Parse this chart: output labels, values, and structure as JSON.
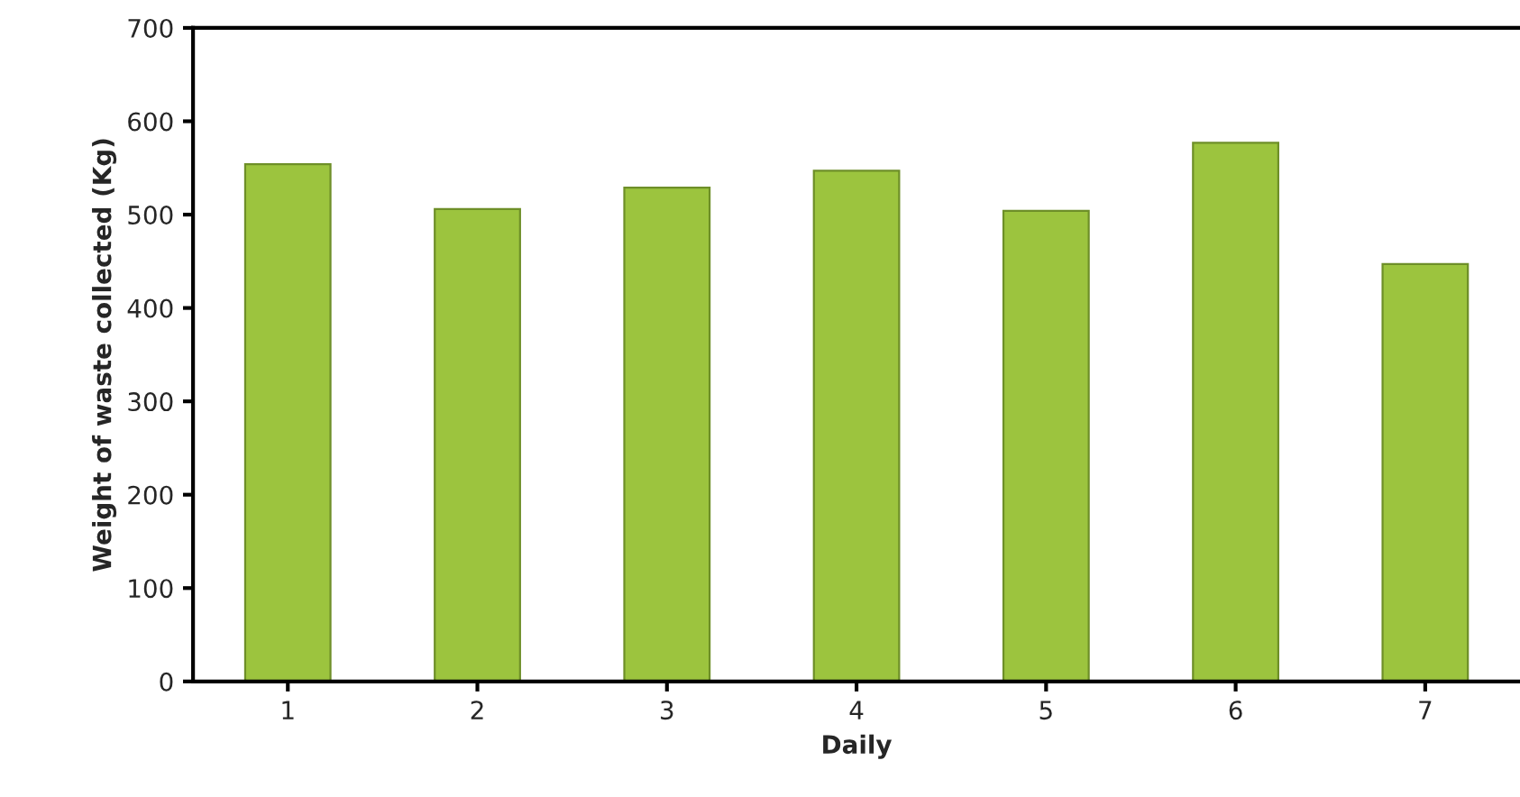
{
  "chart_data": {
    "type": "bar",
    "xlabel": "Daily",
    "ylabel": "Weight of waste collected (Kg)",
    "categories": [
      "1",
      "2",
      "3",
      "4",
      "5",
      "6",
      "7"
    ],
    "values": [
      554,
      506,
      529,
      547,
      504,
      577,
      447
    ],
    "color": "#9cc43e",
    "ylim": [
      0,
      700
    ],
    "yticks": [
      0,
      100,
      200,
      300,
      400,
      500,
      600,
      700
    ],
    "grid": false,
    "legend": false
  }
}
